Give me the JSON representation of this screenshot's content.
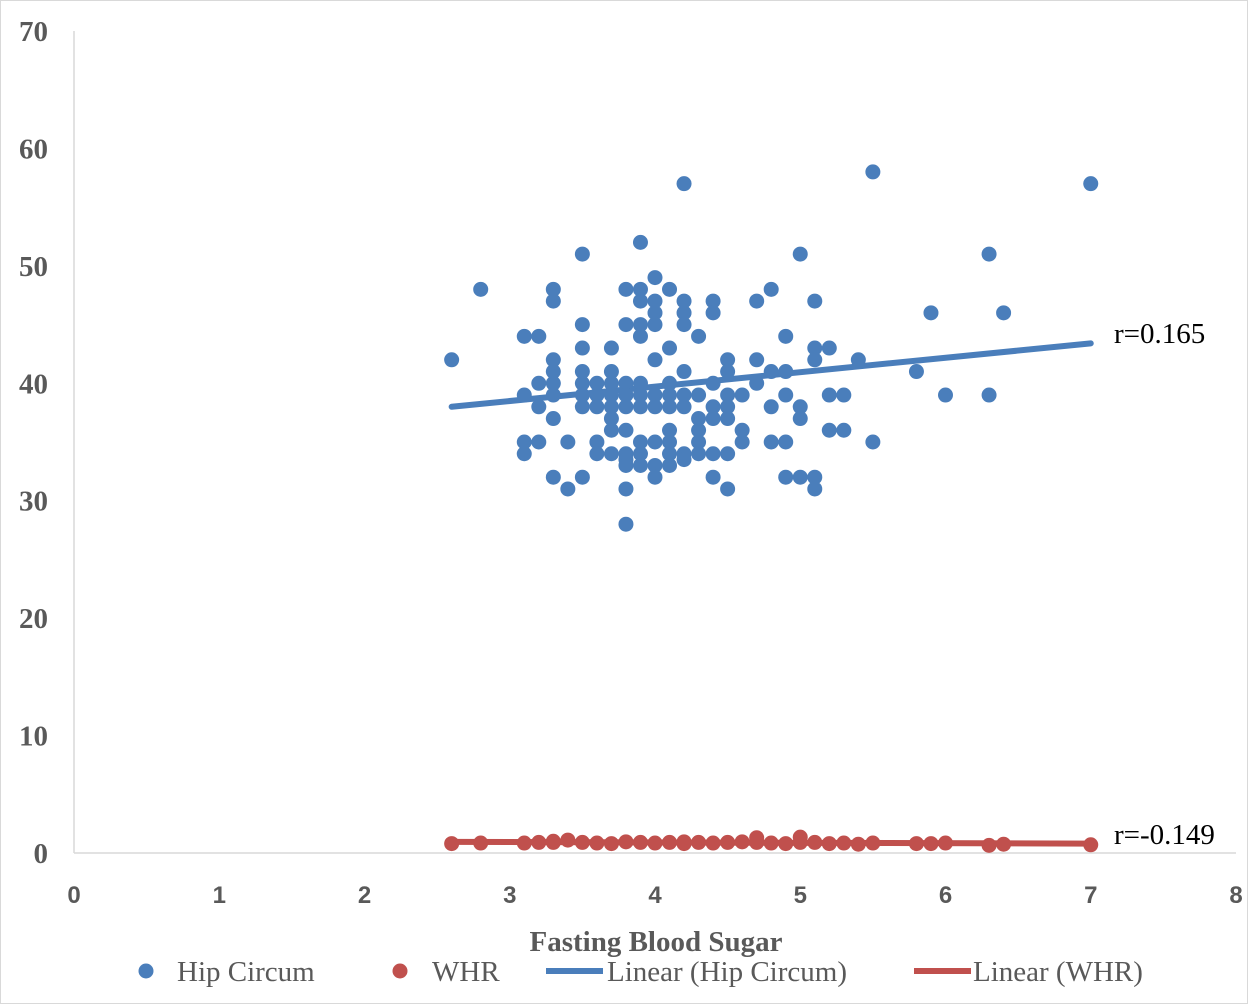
{
  "chart_data": {
    "type": "scatter",
    "title": "",
    "xlabel": "Fasting Blood Sugar",
    "ylabel": "",
    "xlim": [
      0,
      8
    ],
    "ylim": [
      0,
      70
    ],
    "x_ticks": [
      0,
      1,
      2,
      3,
      4,
      5,
      6,
      7,
      8
    ],
    "y_ticks": [
      0,
      10,
      20,
      30,
      40,
      50,
      60,
      70
    ],
    "grid": false,
    "legend_position": "bottom",
    "colors": {
      "hip": "#4a7ebb",
      "whr": "#c0504d",
      "axis": "#d9d9d9",
      "text": "#595959"
    },
    "series": [
      {
        "name": "Hip Circum",
        "marker": "circle",
        "points": [
          [
            2.6,
            42
          ],
          [
            2.8,
            48
          ],
          [
            3.1,
            44
          ],
          [
            3.1,
            39
          ],
          [
            3.1,
            35
          ],
          [
            3.1,
            34
          ],
          [
            3.2,
            44
          ],
          [
            3.2,
            40
          ],
          [
            3.2,
            38
          ],
          [
            3.2,
            35
          ],
          [
            3.3,
            48
          ],
          [
            3.3,
            47
          ],
          [
            3.3,
            42
          ],
          [
            3.3,
            41
          ],
          [
            3.3,
            40
          ],
          [
            3.3,
            39
          ],
          [
            3.3,
            37
          ],
          [
            3.3,
            32
          ],
          [
            3.4,
            35
          ],
          [
            3.4,
            31
          ],
          [
            3.5,
            51
          ],
          [
            3.5,
            45
          ],
          [
            3.5,
            43
          ],
          [
            3.5,
            41
          ],
          [
            3.5,
            40
          ],
          [
            3.5,
            39
          ],
          [
            3.5,
            38
          ],
          [
            3.5,
            32
          ],
          [
            3.6,
            40
          ],
          [
            3.6,
            39
          ],
          [
            3.6,
            38
          ],
          [
            3.6,
            35
          ],
          [
            3.6,
            34
          ],
          [
            3.7,
            43
          ],
          [
            3.7,
            41
          ],
          [
            3.7,
            40
          ],
          [
            3.7,
            39
          ],
          [
            3.7,
            38
          ],
          [
            3.7,
            37
          ],
          [
            3.7,
            36
          ],
          [
            3.7,
            34
          ],
          [
            3.8,
            48
          ],
          [
            3.8,
            45
          ],
          [
            3.8,
            40
          ],
          [
            3.8,
            39
          ],
          [
            3.8,
            38
          ],
          [
            3.8,
            36
          ],
          [
            3.8,
            34
          ],
          [
            3.8,
            33.5
          ],
          [
            3.8,
            33
          ],
          [
            3.8,
            31
          ],
          [
            3.8,
            28
          ],
          [
            3.9,
            52
          ],
          [
            3.9,
            48
          ],
          [
            3.9,
            47
          ],
          [
            3.9,
            45
          ],
          [
            3.9,
            44
          ],
          [
            3.9,
            40
          ],
          [
            3.9,
            39
          ],
          [
            3.9,
            38
          ],
          [
            3.9,
            35
          ],
          [
            3.9,
            34
          ],
          [
            3.9,
            33
          ],
          [
            4.0,
            49
          ],
          [
            4.0,
            47
          ],
          [
            4.0,
            46
          ],
          [
            4.0,
            45
          ],
          [
            4.0,
            42
          ],
          [
            4.0,
            39
          ],
          [
            4.0,
            38
          ],
          [
            4.0,
            35
          ],
          [
            4.0,
            33
          ],
          [
            4.0,
            32
          ],
          [
            4.1,
            48
          ],
          [
            4.1,
            43
          ],
          [
            4.1,
            40
          ],
          [
            4.1,
            39
          ],
          [
            4.1,
            38
          ],
          [
            4.1,
            36
          ],
          [
            4.1,
            35
          ],
          [
            4.1,
            34
          ],
          [
            4.1,
            33
          ],
          [
            4.2,
            57
          ],
          [
            4.2,
            47
          ],
          [
            4.2,
            46
          ],
          [
            4.2,
            45
          ],
          [
            4.2,
            41
          ],
          [
            4.2,
            39
          ],
          [
            4.2,
            38
          ],
          [
            4.2,
            34
          ],
          [
            4.2,
            33.5
          ],
          [
            4.3,
            44
          ],
          [
            4.3,
            39
          ],
          [
            4.3,
            37
          ],
          [
            4.3,
            36
          ],
          [
            4.3,
            35
          ],
          [
            4.3,
            34
          ],
          [
            4.4,
            47
          ],
          [
            4.4,
            46
          ],
          [
            4.4,
            40
          ],
          [
            4.4,
            38
          ],
          [
            4.4,
            37
          ],
          [
            4.4,
            34
          ],
          [
            4.4,
            32
          ],
          [
            4.5,
            42
          ],
          [
            4.5,
            41
          ],
          [
            4.5,
            39
          ],
          [
            4.5,
            38
          ],
          [
            4.5,
            37
          ],
          [
            4.5,
            34
          ],
          [
            4.5,
            31
          ],
          [
            4.6,
            39
          ],
          [
            4.6,
            36
          ],
          [
            4.6,
            35
          ],
          [
            4.7,
            47
          ],
          [
            4.7,
            42
          ],
          [
            4.7,
            40
          ],
          [
            4.8,
            48
          ],
          [
            4.8,
            41
          ],
          [
            4.8,
            38
          ],
          [
            4.8,
            35
          ],
          [
            4.9,
            44
          ],
          [
            4.9,
            41
          ],
          [
            4.9,
            39
          ],
          [
            4.9,
            35
          ],
          [
            4.9,
            32
          ],
          [
            5.0,
            51
          ],
          [
            5.0,
            38
          ],
          [
            5.0,
            37
          ],
          [
            5.0,
            32
          ],
          [
            5.1,
            47
          ],
          [
            5.1,
            43
          ],
          [
            5.1,
            42
          ],
          [
            5.1,
            32
          ],
          [
            5.1,
            31
          ],
          [
            5.2,
            43
          ],
          [
            5.2,
            39
          ],
          [
            5.2,
            36
          ],
          [
            5.3,
            39
          ],
          [
            5.3,
            36
          ],
          [
            5.4,
            42
          ],
          [
            5.5,
            58
          ],
          [
            5.5,
            35
          ],
          [
            5.8,
            41
          ],
          [
            5.9,
            46
          ],
          [
            6.0,
            39
          ],
          [
            6.3,
            51
          ],
          [
            6.3,
            39
          ],
          [
            6.4,
            46
          ],
          [
            7.0,
            57
          ]
        ]
      },
      {
        "name": "WHR",
        "marker": "circle",
        "points": [
          [
            2.6,
            0.8
          ],
          [
            2.8,
            0.85
          ],
          [
            3.1,
            0.85
          ],
          [
            3.2,
            0.9
          ],
          [
            3.3,
            0.9
          ],
          [
            3.3,
            1.0
          ],
          [
            3.4,
            1.1
          ],
          [
            3.5,
            0.9
          ],
          [
            3.6,
            0.85
          ],
          [
            3.7,
            0.8
          ],
          [
            3.8,
            0.95
          ],
          [
            3.9,
            0.9
          ],
          [
            4.0,
            0.85
          ],
          [
            4.1,
            0.9
          ],
          [
            4.2,
            0.8
          ],
          [
            4.2,
            0.95
          ],
          [
            4.3,
            0.9
          ],
          [
            4.4,
            0.85
          ],
          [
            4.5,
            0.9
          ],
          [
            4.6,
            0.95
          ],
          [
            4.7,
            1.3
          ],
          [
            4.7,
            0.9
          ],
          [
            4.8,
            0.85
          ],
          [
            4.9,
            0.8
          ],
          [
            5.0,
            1.35
          ],
          [
            5.0,
            0.9
          ],
          [
            5.1,
            0.9
          ],
          [
            5.2,
            0.8
          ],
          [
            5.3,
            0.85
          ],
          [
            5.4,
            0.75
          ],
          [
            5.5,
            0.85
          ],
          [
            5.8,
            0.8
          ],
          [
            5.9,
            0.8
          ],
          [
            6.0,
            0.85
          ],
          [
            6.3,
            0.65
          ],
          [
            6.4,
            0.75
          ],
          [
            7.0,
            0.7
          ]
        ]
      }
    ],
    "trendlines": [
      {
        "name": "Linear (Hip Circum)",
        "series": "Hip Circum",
        "type": "linear",
        "x": [
          2.6,
          7.0
        ],
        "y": [
          38.0,
          43.4
        ],
        "annotation": "r=0.165"
      },
      {
        "name": "Linear (WHR)",
        "series": "WHR",
        "type": "linear",
        "x": [
          2.6,
          7.0
        ],
        "y": [
          0.95,
          0.8
        ],
        "annotation": "r=-0.149"
      }
    ],
    "legend": [
      {
        "label": "Hip Circum",
        "kind": "marker",
        "series": "Hip Circum"
      },
      {
        "label": "WHR",
        "kind": "marker",
        "series": "WHR"
      },
      {
        "label": "Linear (Hip Circum)",
        "kind": "line",
        "series": "Hip Circum"
      },
      {
        "label": "Linear (WHR)",
        "kind": "line",
        "series": "WHR"
      }
    ]
  }
}
